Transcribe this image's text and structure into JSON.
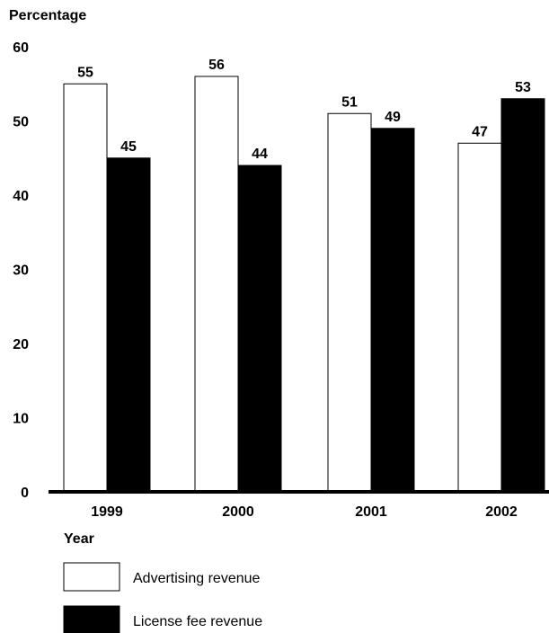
{
  "chart_data": {
    "type": "bar",
    "ylabel": "Percentage",
    "xlabel": "Year",
    "categories": [
      "1999",
      "2000",
      "2001",
      "2002"
    ],
    "yticks": [
      0,
      10,
      20,
      30,
      40,
      50,
      60
    ],
    "ylim": [
      0,
      60
    ],
    "grid": false,
    "legend_position": "bottom-left",
    "series": [
      {
        "name": "Advertising revenue",
        "values": [
          55,
          56,
          51,
          47
        ],
        "color": "#ffffff"
      },
      {
        "name": "License fee revenue",
        "values": [
          45,
          44,
          49,
          53
        ],
        "color": "#000000"
      }
    ]
  }
}
